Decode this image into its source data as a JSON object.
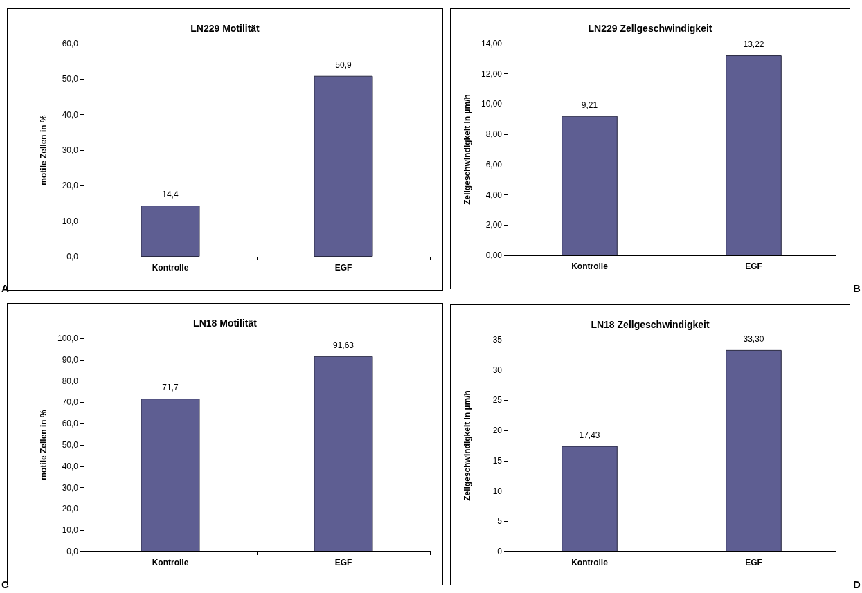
{
  "chart_data": [
    {
      "type": "bar",
      "title": "LN229 Motilität",
      "ylabel": "motile Zellen in %",
      "categories": [
        "Kontrolle",
        "EGF"
      ],
      "values": [
        14.4,
        50.9
      ],
      "value_labels": [
        "14,4",
        "50,9"
      ],
      "color": "#5e5e92",
      "ylim": [
        0,
        60
      ],
      "yticks": [
        {
          "value": 0,
          "label": "0,0"
        },
        {
          "value": 10,
          "label": "10,0"
        },
        {
          "value": 20,
          "label": "20,0"
        },
        {
          "value": 30,
          "label": "30,0"
        },
        {
          "value": 40,
          "label": "40,0"
        },
        {
          "value": 50,
          "label": "50,0"
        },
        {
          "value": 60,
          "label": "60,0"
        }
      ],
      "annotations": [
        "A"
      ]
    },
    {
      "type": "bar",
      "title": "LN229 Zellgeschwindigkeit",
      "ylabel": "Zellgeschwindigkeit in µm/h",
      "categories": [
        "Kontrolle",
        "EGF"
      ],
      "values": [
        9.21,
        13.22
      ],
      "value_labels": [
        "9,21",
        "13,22"
      ],
      "color": "#5e5e92",
      "ylim": [
        0,
        14
      ],
      "yticks": [
        {
          "value": 0,
          "label": "0,00"
        },
        {
          "value": 2,
          "label": "2,00"
        },
        {
          "value": 4,
          "label": "4,00"
        },
        {
          "value": 6,
          "label": "6,00"
        },
        {
          "value": 8,
          "label": "8,00"
        },
        {
          "value": 10,
          "label": "10,00"
        },
        {
          "value": 12,
          "label": "12,00"
        },
        {
          "value": 14,
          "label": "14,00"
        }
      ],
      "annotations": [
        "B"
      ]
    },
    {
      "type": "bar",
      "title": "LN18 Motilität",
      "ylabel": "motile Zellen in %",
      "categories": [
        "Kontrolle",
        "EGF"
      ],
      "values": [
        71.7,
        91.63
      ],
      "value_labels": [
        "71,7",
        "91,63"
      ],
      "color": "#5e5e92",
      "ylim": [
        0,
        100
      ],
      "yticks": [
        {
          "value": 0,
          "label": "0,0"
        },
        {
          "value": 10,
          "label": "10,0"
        },
        {
          "value": 20,
          "label": "20,0"
        },
        {
          "value": 30,
          "label": "30,0"
        },
        {
          "value": 40,
          "label": "40,0"
        },
        {
          "value": 50,
          "label": "50,0"
        },
        {
          "value": 60,
          "label": "60,0"
        },
        {
          "value": 70,
          "label": "70,0"
        },
        {
          "value": 80,
          "label": "80,0"
        },
        {
          "value": 90,
          "label": "90,0"
        },
        {
          "value": 100,
          "label": "100,0"
        }
      ],
      "annotations": [
        "C"
      ]
    },
    {
      "type": "bar",
      "title": "LN18 Zellgeschwindigkeit",
      "ylabel": "Zellgeschwindigkeit in µm/h",
      "categories": [
        "Kontrolle",
        "EGF"
      ],
      "values": [
        17.43,
        33.3
      ],
      "value_labels": [
        "17,43",
        "33,30"
      ],
      "color": "#5e5e92",
      "ylim": [
        0,
        35
      ],
      "yticks": [
        0,
        5,
        10,
        15,
        20,
        25,
        30,
        35
      ],
      "annotations": [
        "D"
      ]
    }
  ]
}
